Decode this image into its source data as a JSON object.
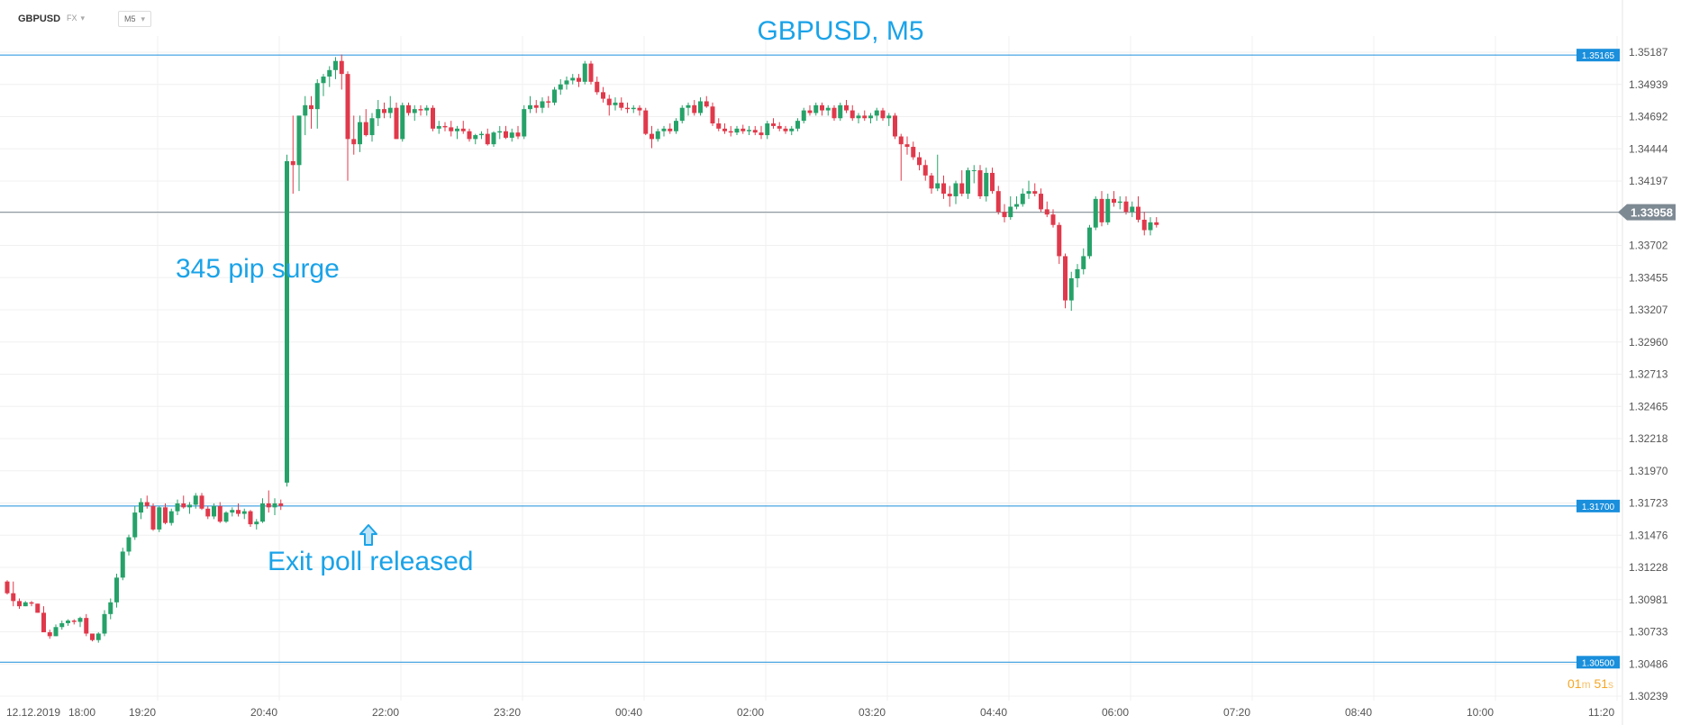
{
  "toolbar": {
    "symbol": "GBPUSD",
    "market": "FX",
    "timeframe": "M5"
  },
  "title": "GBPUSD, M5",
  "annotations": {
    "surge": "345 pip surge",
    "exit_poll": "Exit poll released"
  },
  "countdown": {
    "min": "01",
    "min_unit": "m",
    "sec": "51",
    "sec_unit": "s"
  },
  "colors": {
    "up": "#26a269",
    "down": "#e0394b",
    "hline": "#1a8fdc",
    "accent": "#1aa3e8",
    "price": "#7e8a93",
    "timer": "#f5a623"
  },
  "chart_data": {
    "type": "candlestick",
    "ylim": [
      1.30239,
      1.35187
    ],
    "y_ticks": [
      "1.35187",
      "1.34939",
      "1.34692",
      "1.34444",
      "1.34197",
      "1.33949",
      "1.33702",
      "1.33455",
      "1.33207",
      "1.32960",
      "1.32713",
      "1.32465",
      "1.32218",
      "1.31970",
      "1.31723",
      "1.31476",
      "1.31228",
      "1.30981",
      "1.30733",
      "1.30486",
      "1.30239"
    ],
    "x_ticks": [
      "12.12.2019",
      "18:00",
      "19:20",
      "20:40",
      "22:00",
      "23:20",
      "00:40",
      "02:00",
      "03:20",
      "04:40",
      "06:00",
      "07:20",
      "08:40",
      "10:00",
      "11:20"
    ],
    "horizontal_lines": [
      {
        "price": 1.35165,
        "label": "1.35165"
      },
      {
        "price": 1.317,
        "label": "1.31700"
      },
      {
        "price": 1.305,
        "label": "1.30500"
      }
    ],
    "last_price": {
      "price": 1.33958,
      "label": "1.33958"
    },
    "candles": [
      [
        1.3112,
        1.3113,
        1.3102,
        1.3103
      ],
      [
        1.3103,
        1.3112,
        1.3093,
        1.3097
      ],
      [
        1.3097,
        1.3099,
        1.3091,
        1.3093
      ],
      [
        1.3093,
        1.3097,
        1.3093,
        1.3096
      ],
      [
        1.3096,
        1.3097,
        1.3093,
        1.3095
      ],
      [
        1.3095,
        1.3095,
        1.3088,
        1.3088
      ],
      [
        1.3088,
        1.3093,
        1.3073,
        1.3073
      ],
      [
        1.3073,
        1.3075,
        1.3068,
        1.307
      ],
      [
        1.307,
        1.3079,
        1.307,
        1.3077
      ],
      [
        1.3077,
        1.3082,
        1.3075,
        1.308
      ],
      [
        1.308,
        1.3083,
        1.3078,
        1.3082
      ],
      [
        1.3082,
        1.3083,
        1.3079,
        1.3081
      ],
      [
        1.3081,
        1.3085,
        1.3077,
        1.3084
      ],
      [
        1.3084,
        1.3087,
        1.307,
        1.3072
      ],
      [
        1.3072,
        1.3072,
        1.3066,
        1.3067
      ],
      [
        1.3067,
        1.3073,
        1.3065,
        1.3072
      ],
      [
        1.3072,
        1.309,
        1.307,
        1.3087
      ],
      [
        1.3087,
        1.3099,
        1.3083,
        1.3096
      ],
      [
        1.3096,
        1.3118,
        1.3092,
        1.3115
      ],
      [
        1.3115,
        1.3138,
        1.3113,
        1.3135
      ],
      [
        1.3135,
        1.3148,
        1.3132,
        1.3146
      ],
      [
        1.3146,
        1.317,
        1.3144,
        1.3165
      ],
      [
        1.3165,
        1.3176,
        1.316,
        1.3173
      ],
      [
        1.3173,
        1.3178,
        1.3168,
        1.317
      ],
      [
        1.317,
        1.3172,
        1.3151,
        1.3152
      ],
      [
        1.3152,
        1.317,
        1.315,
        1.3169
      ],
      [
        1.3169,
        1.3172,
        1.3156,
        1.3157
      ],
      [
        1.3157,
        1.3168,
        1.3155,
        1.3166
      ],
      [
        1.3166,
        1.3175,
        1.3163,
        1.3172
      ],
      [
        1.3172,
        1.3178,
        1.3168,
        1.3169
      ],
      [
        1.3169,
        1.3173,
        1.3164,
        1.3171
      ],
      [
        1.3171,
        1.318,
        1.3168,
        1.3178
      ],
      [
        1.3178,
        1.318,
        1.3167,
        1.3168
      ],
      [
        1.3168,
        1.317,
        1.316,
        1.3162
      ],
      [
        1.3162,
        1.3172,
        1.316,
        1.317
      ],
      [
        1.317,
        1.3173,
        1.3157,
        1.3158
      ],
      [
        1.3158,
        1.3166,
        1.3157,
        1.3165
      ],
      [
        1.3165,
        1.3169,
        1.3162,
        1.3167
      ],
      [
        1.3167,
        1.3172,
        1.3162,
        1.3164
      ],
      [
        1.3164,
        1.3168,
        1.316,
        1.3166
      ],
      [
        1.3166,
        1.3167,
        1.3154,
        1.3156
      ],
      [
        1.3156,
        1.316,
        1.3152,
        1.3158
      ],
      [
        1.3158,
        1.3176,
        1.3157,
        1.3172
      ],
      [
        1.3172,
        1.3182,
        1.3165,
        1.3169
      ],
      [
        1.3169,
        1.3176,
        1.3163,
        1.3172
      ],
      [
        1.3172,
        1.3175,
        1.3167,
        1.317
      ],
      [
        1.3188,
        1.344,
        1.3185,
        1.3435
      ],
      [
        1.3435,
        1.347,
        1.341,
        1.3432
      ],
      [
        1.3432,
        1.3468,
        1.3412,
        1.347
      ],
      [
        1.347,
        1.3485,
        1.3455,
        1.3478
      ],
      [
        1.3478,
        1.3485,
        1.346,
        1.3475
      ],
      [
        1.3475,
        1.3498,
        1.346,
        1.3495
      ],
      [
        1.3495,
        1.3502,
        1.3485,
        1.35
      ],
      [
        1.35,
        1.3508,
        1.3492,
        1.3505
      ],
      [
        1.3505,
        1.3515,
        1.3498,
        1.3512
      ],
      [
        1.3512,
        1.3517,
        1.349,
        1.3502
      ],
      [
        1.3502,
        1.3504,
        1.342,
        1.3452
      ],
      [
        1.3452,
        1.347,
        1.344,
        1.3448
      ],
      [
        1.3448,
        1.347,
        1.3442,
        1.3465
      ],
      [
        1.3465,
        1.3475,
        1.3454,
        1.3455
      ],
      [
        1.3455,
        1.3472,
        1.345,
        1.3468
      ],
      [
        1.3468,
        1.3482,
        1.3462,
        1.3475
      ],
      [
        1.3475,
        1.348,
        1.3468,
        1.3472
      ],
      [
        1.3472,
        1.3485,
        1.3468,
        1.3476
      ],
      [
        1.3476,
        1.348,
        1.3452,
        1.3452
      ],
      [
        1.3452,
        1.348,
        1.345,
        1.3478
      ],
      [
        1.3478,
        1.348,
        1.347,
        1.3472
      ],
      [
        1.3472,
        1.3478,
        1.3466,
        1.3475
      ],
      [
        1.3475,
        1.3478,
        1.347,
        1.3474
      ],
      [
        1.3474,
        1.3478,
        1.347,
        1.3476
      ],
      [
        1.3476,
        1.3478,
        1.3458,
        1.346
      ],
      [
        1.346,
        1.3466,
        1.3456,
        1.3462
      ],
      [
        1.3462,
        1.3465,
        1.3458,
        1.3461
      ],
      [
        1.3461,
        1.3466,
        1.3454,
        1.3458
      ],
      [
        1.3458,
        1.3462,
        1.3452,
        1.346
      ],
      [
        1.346,
        1.3466,
        1.3456,
        1.3458
      ],
      [
        1.3458,
        1.346,
        1.345,
        1.3452
      ],
      [
        1.3452,
        1.3456,
        1.3448,
        1.3455
      ],
      [
        1.3455,
        1.3458,
        1.3452,
        1.3456
      ],
      [
        1.3456,
        1.346,
        1.3447,
        1.3448
      ],
      [
        1.3448,
        1.3458,
        1.3446,
        1.3457
      ],
      [
        1.3457,
        1.3462,
        1.3452,
        1.3458
      ],
      [
        1.3458,
        1.3462,
        1.3452,
        1.3453
      ],
      [
        1.3453,
        1.346,
        1.345,
        1.3457
      ],
      [
        1.3457,
        1.3462,
        1.3452,
        1.3454
      ],
      [
        1.3454,
        1.3478,
        1.3452,
        1.3475
      ],
      [
        1.3475,
        1.3485,
        1.3472,
        1.3478
      ],
      [
        1.3478,
        1.3482,
        1.3472,
        1.3476
      ],
      [
        1.3476,
        1.3484,
        1.3472,
        1.3481
      ],
      [
        1.3481,
        1.3485,
        1.3476,
        1.348
      ],
      [
        1.348,
        1.3492,
        1.3478,
        1.349
      ],
      [
        1.349,
        1.3498,
        1.3486,
        1.3494
      ],
      [
        1.3494,
        1.35,
        1.349,
        1.3497
      ],
      [
        1.3497,
        1.3502,
        1.3494,
        1.3499
      ],
      [
        1.3499,
        1.3502,
        1.3492,
        1.3496
      ],
      [
        1.3496,
        1.3512,
        1.3494,
        1.351
      ],
      [
        1.351,
        1.3512,
        1.3494,
        1.3496
      ],
      [
        1.3496,
        1.35,
        1.3486,
        1.3488
      ],
      [
        1.3488,
        1.3492,
        1.348,
        1.3483
      ],
      [
        1.3483,
        1.3486,
        1.347,
        1.3478
      ],
      [
        1.3478,
        1.3484,
        1.3474,
        1.348
      ],
      [
        1.348,
        1.3484,
        1.3474,
        1.3476
      ],
      [
        1.3476,
        1.348,
        1.3472,
        1.3475
      ],
      [
        1.3475,
        1.3478,
        1.3472,
        1.3476
      ],
      [
        1.3476,
        1.3478,
        1.347,
        1.3474
      ],
      [
        1.3474,
        1.3476,
        1.3455,
        1.3456
      ],
      [
        1.3456,
        1.3462,
        1.3445,
        1.3452
      ],
      [
        1.3452,
        1.346,
        1.345,
        1.3458
      ],
      [
        1.3458,
        1.3462,
        1.3454,
        1.346
      ],
      [
        1.346,
        1.3464,
        1.3456,
        1.3458
      ],
      [
        1.3458,
        1.3468,
        1.3456,
        1.3466
      ],
      [
        1.3466,
        1.3478,
        1.3464,
        1.3476
      ],
      [
        1.3476,
        1.348,
        1.347,
        1.3478
      ],
      [
        1.3478,
        1.3482,
        1.347,
        1.3472
      ],
      [
        1.3472,
        1.3484,
        1.347,
        1.3481
      ],
      [
        1.3481,
        1.3485,
        1.3476,
        1.3477
      ],
      [
        1.3477,
        1.348,
        1.3462,
        1.3464
      ],
      [
        1.3464,
        1.3468,
        1.3458,
        1.346
      ],
      [
        1.346,
        1.3464,
        1.3456,
        1.3458
      ],
      [
        1.3458,
        1.3462,
        1.3454,
        1.3457
      ],
      [
        1.3457,
        1.3462,
        1.3455,
        1.346
      ],
      [
        1.346,
        1.3463,
        1.3456,
        1.3458
      ],
      [
        1.3458,
        1.3462,
        1.3455,
        1.3459
      ],
      [
        1.3459,
        1.3462,
        1.3455,
        1.3457
      ],
      [
        1.3457,
        1.3462,
        1.3452,
        1.3455
      ],
      [
        1.3455,
        1.3466,
        1.3452,
        1.3464
      ],
      [
        1.3464,
        1.3468,
        1.346,
        1.3462
      ],
      [
        1.3462,
        1.3465,
        1.3458,
        1.346
      ],
      [
        1.346,
        1.3462,
        1.3456,
        1.3458
      ],
      [
        1.3458,
        1.3462,
        1.3455,
        1.346
      ],
      [
        1.346,
        1.3468,
        1.3458,
        1.3466
      ],
      [
        1.3466,
        1.3476,
        1.3464,
        1.3474
      ],
      [
        1.3474,
        1.3478,
        1.347,
        1.3472
      ],
      [
        1.3472,
        1.348,
        1.347,
        1.3478
      ],
      [
        1.3478,
        1.348,
        1.347,
        1.3474
      ],
      [
        1.3474,
        1.3478,
        1.347,
        1.3476
      ],
      [
        1.3476,
        1.3478,
        1.3466,
        1.3468
      ],
      [
        1.3468,
        1.348,
        1.3466,
        1.3478
      ],
      [
        1.3478,
        1.3482,
        1.3472,
        1.3474
      ],
      [
        1.3474,
        1.3478,
        1.3466,
        1.3468
      ],
      [
        1.3468,
        1.3472,
        1.3464,
        1.347
      ],
      [
        1.347,
        1.3474,
        1.3466,
        1.3468
      ],
      [
        1.3468,
        1.3472,
        1.3464,
        1.347
      ],
      [
        1.347,
        1.3476,
        1.3466,
        1.3474
      ],
      [
        1.3474,
        1.3476,
        1.3466,
        1.3468
      ],
      [
        1.3468,
        1.3472,
        1.3462,
        1.347
      ],
      [
        1.347,
        1.3472,
        1.3452,
        1.3454
      ],
      [
        1.3454,
        1.3456,
        1.342,
        1.3448
      ],
      [
        1.3448,
        1.3454,
        1.344,
        1.3446
      ],
      [
        1.3446,
        1.345,
        1.3436,
        1.3438
      ],
      [
        1.3438,
        1.3442,
        1.3428,
        1.3432
      ],
      [
        1.3432,
        1.3436,
        1.342,
        1.3424
      ],
      [
        1.3424,
        1.3426,
        1.341,
        1.3414
      ],
      [
        1.3414,
        1.344,
        1.3412,
        1.3418
      ],
      [
        1.3418,
        1.3424,
        1.3406,
        1.341
      ],
      [
        1.341,
        1.3416,
        1.34,
        1.3408
      ],
      [
        1.3408,
        1.342,
        1.3402,
        1.3418
      ],
      [
        1.3418,
        1.3428,
        1.3408,
        1.341
      ],
      [
        1.341,
        1.343,
        1.3406,
        1.3428
      ],
      [
        1.3428,
        1.3432,
        1.3418,
        1.3428
      ],
      [
        1.3428,
        1.3432,
        1.3406,
        1.3408
      ],
      [
        1.3408,
        1.343,
        1.3404,
        1.3426
      ],
      [
        1.3426,
        1.343,
        1.341,
        1.3412
      ],
      [
        1.3412,
        1.3416,
        1.3394,
        1.3396
      ],
      [
        1.3396,
        1.3402,
        1.3388,
        1.3392
      ],
      [
        1.3392,
        1.3408,
        1.339,
        1.34
      ],
      [
        1.34,
        1.3408,
        1.3398,
        1.3402
      ],
      [
        1.3402,
        1.3414,
        1.34,
        1.341
      ],
      [
        1.341,
        1.342,
        1.3406,
        1.3412
      ],
      [
        1.3412,
        1.3418,
        1.3408,
        1.341
      ],
      [
        1.341,
        1.3414,
        1.3396,
        1.3398
      ],
      [
        1.3398,
        1.3404,
        1.3392,
        1.3394
      ],
      [
        1.3394,
        1.3398,
        1.3384,
        1.3386
      ],
      [
        1.3386,
        1.3388,
        1.3356,
        1.3362
      ],
      [
        1.3362,
        1.3364,
        1.3322,
        1.3328
      ],
      [
        1.3328,
        1.335,
        1.332,
        1.3345
      ],
      [
        1.3345,
        1.3356,
        1.3338,
        1.3352
      ],
      [
        1.3352,
        1.3368,
        1.3348,
        1.3362
      ],
      [
        1.3362,
        1.3386,
        1.336,
        1.3384
      ],
      [
        1.3384,
        1.3408,
        1.3382,
        1.3406
      ],
      [
        1.3406,
        1.3412,
        1.3385,
        1.3388
      ],
      [
        1.3388,
        1.341,
        1.3386,
        1.3406
      ],
      [
        1.3406,
        1.3412,
        1.34,
        1.3403
      ],
      [
        1.3403,
        1.3408,
        1.3398,
        1.3404
      ],
      [
        1.3404,
        1.3408,
        1.3394,
        1.3396
      ],
      [
        1.3396,
        1.3404,
        1.3392,
        1.34
      ],
      [
        1.34,
        1.3408,
        1.3388,
        1.339
      ],
      [
        1.339,
        1.3396,
        1.3378,
        1.3382
      ],
      [
        1.3382,
        1.3392,
        1.3378,
        1.3388
      ],
      [
        1.3388,
        1.3392,
        1.3384,
        1.3386
      ]
    ]
  }
}
